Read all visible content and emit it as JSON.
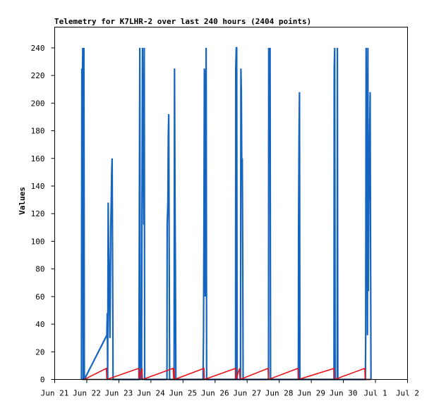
{
  "chart_data": {
    "type": "line",
    "title": "Telemetry for K7LHR-2 over last 240 hours (2404 points)",
    "ylabel": "Values",
    "xlabel": "",
    "ylim": [
      0,
      255
    ],
    "yticks": [
      0,
      20,
      40,
      60,
      80,
      100,
      120,
      140,
      160,
      180,
      200,
      220,
      240
    ],
    "xlim": [
      "2024-06-21",
      "2024-07-02"
    ],
    "xticks": [
      {
        "date": "2024-06-21",
        "label": "Jun 21"
      },
      {
        "date": "2024-06-22",
        "label": "Jun 22"
      },
      {
        "date": "2024-06-23",
        "label": "Jun 23"
      },
      {
        "date": "2024-06-24",
        "label": "Jun 24"
      },
      {
        "date": "2024-06-25",
        "label": "Jun 25"
      },
      {
        "date": "2024-06-26",
        "label": "Jun 26"
      },
      {
        "date": "2024-06-27",
        "label": "Jun 27"
      },
      {
        "date": "2024-06-28",
        "label": "Jun 28"
      },
      {
        "date": "2024-06-29",
        "label": "Jun 29"
      },
      {
        "date": "2024-06-30",
        "label": "Jun 30"
      },
      {
        "date": "2024-07-01",
        "label": "Jul 1"
      },
      {
        "date": "2024-07-02",
        "label": "Jul 2"
      }
    ],
    "grid": false,
    "series": [
      {
        "color": "#1565c0",
        "points": [
          [
            "2024-06-21 20:00",
            0
          ],
          [
            "2024-06-21 20:20",
            225
          ],
          [
            "2024-06-21 20:40",
            208
          ],
          [
            "2024-06-21 21:00",
            240
          ],
          [
            "2024-06-21 21:20",
            0
          ],
          [
            "2024-06-21 21:50",
            240
          ],
          [
            "2024-06-21 22:10",
            0
          ],
          [
            "2024-06-22 15:00",
            32
          ],
          [
            "2024-06-22 15:20",
            48
          ],
          [
            "2024-06-22 15:40",
            0
          ],
          [
            "2024-06-22 16:00",
            128
          ],
          [
            "2024-06-22 16:20",
            96
          ],
          [
            "2024-06-22 16:40",
            80
          ],
          [
            "2024-06-22 17:00",
            48
          ],
          [
            "2024-06-22 17:20",
            30
          ],
          [
            "2024-06-22 17:40",
            70
          ],
          [
            "2024-06-22 18:00",
            112
          ],
          [
            "2024-06-22 18:20",
            130
          ],
          [
            "2024-06-22 18:40",
            150
          ],
          [
            "2024-06-22 19:00",
            160
          ],
          [
            "2024-06-22 19:20",
            80
          ],
          [
            "2024-06-22 19:40",
            0
          ],
          [
            "2024-06-23 15:00",
            0
          ],
          [
            "2024-06-23 15:10",
            48
          ],
          [
            "2024-06-23 15:40",
            240
          ],
          [
            "2024-06-23 16:00",
            0
          ],
          [
            "2024-06-23 16:20",
            48
          ],
          [
            "2024-06-23 16:40",
            40
          ],
          [
            "2024-06-23 17:00",
            0
          ],
          [
            "2024-06-23 17:20",
            128
          ],
          [
            "2024-06-23 17:40",
            240
          ],
          [
            "2024-06-23 18:00",
            177
          ],
          [
            "2024-06-23 18:20",
            160
          ],
          [
            "2024-06-23 18:40",
            112
          ],
          [
            "2024-06-23 19:00",
            240
          ],
          [
            "2024-06-23 19:20",
            0
          ],
          [
            "2024-06-24 12:00",
            0
          ],
          [
            "2024-06-24 12:10",
            112
          ],
          [
            "2024-06-24 12:40",
            128
          ],
          [
            "2024-06-24 13:00",
            177
          ],
          [
            "2024-06-24 13:20",
            192
          ],
          [
            "2024-06-24 13:40",
            96
          ],
          [
            "2024-06-24 14:00",
            0
          ],
          [
            "2024-06-24 17:20",
            0
          ],
          [
            "2024-06-24 17:40",
            225
          ],
          [
            "2024-06-24 18:00",
            128
          ],
          [
            "2024-06-24 18:20",
            80
          ],
          [
            "2024-06-24 18:40",
            0
          ],
          [
            "2024-06-25 15:00",
            0
          ],
          [
            "2024-06-25 15:20",
            32
          ],
          [
            "2024-06-25 15:40",
            112
          ],
          [
            "2024-06-25 16:00",
            225
          ],
          [
            "2024-06-25 16:20",
            208
          ],
          [
            "2024-06-25 16:40",
            60
          ],
          [
            "2024-06-25 17:00",
            128
          ],
          [
            "2024-06-25 17:20",
            240
          ],
          [
            "2024-06-25 17:40",
            0
          ],
          [
            "2024-06-26 15:20",
            0
          ],
          [
            "2024-06-26 15:30",
            225
          ],
          [
            "2024-06-26 15:50",
            240
          ],
          [
            "2024-06-26 16:10",
            240
          ],
          [
            "2024-06-26 16:30",
            0
          ],
          [
            "2024-06-26 19:00",
            0
          ],
          [
            "2024-06-26 19:20",
            225
          ],
          [
            "2024-06-26 19:40",
            208
          ],
          [
            "2024-06-26 20:00",
            145
          ],
          [
            "2024-06-26 20:20",
            160
          ],
          [
            "2024-06-26 20:40",
            97
          ],
          [
            "2024-06-26 21:00",
            0
          ],
          [
            "2024-06-27 16:00",
            0
          ],
          [
            "2024-06-27 16:10",
            240
          ],
          [
            "2024-06-27 16:30",
            208
          ],
          [
            "2024-06-27 16:50",
            225
          ],
          [
            "2024-06-27 17:10",
            240
          ],
          [
            "2024-06-27 17:30",
            0
          ],
          [
            "2024-06-28 14:20",
            0
          ],
          [
            "2024-06-28 14:30",
            112
          ],
          [
            "2024-06-28 14:50",
            177
          ],
          [
            "2024-06-28 15:10",
            208
          ],
          [
            "2024-06-28 15:30",
            0
          ],
          [
            "2024-06-29 17:00",
            0
          ],
          [
            "2024-06-29 17:10",
            225
          ],
          [
            "2024-06-29 17:30",
            240
          ],
          [
            "2024-06-29 17:50",
            0
          ],
          [
            "2024-06-29 19:20",
            0
          ],
          [
            "2024-06-29 19:30",
            240
          ],
          [
            "2024-06-29 19:50",
            0
          ],
          [
            "2024-06-30 16:30",
            0
          ],
          [
            "2024-06-30 16:40",
            32
          ],
          [
            "2024-06-30 17:00",
            240
          ],
          [
            "2024-06-30 17:20",
            192
          ],
          [
            "2024-06-30 17:40",
            145
          ],
          [
            "2024-06-30 18:00",
            32
          ],
          [
            "2024-06-30 18:20",
            240
          ],
          [
            "2024-06-30 18:40",
            64
          ],
          [
            "2024-06-30 19:00",
            128
          ],
          [
            "2024-06-30 19:20",
            145
          ],
          [
            "2024-06-30 19:40",
            177
          ],
          [
            "2024-06-30 20:00",
            208
          ],
          [
            "2024-06-30 20:20",
            97
          ],
          [
            "2024-06-30 20:40",
            0
          ]
        ]
      },
      {
        "color": "#e8131a",
        "points": [
          [
            "2024-06-21 22:00",
            0
          ],
          [
            "2024-06-22 14:40",
            8
          ],
          [
            "2024-06-22 15:00",
            0
          ],
          [
            "2024-06-23 14:50",
            8
          ],
          [
            "2024-06-23 15:20",
            0
          ],
          [
            "2024-06-23 17:20",
            8
          ],
          [
            "2024-06-23 17:40",
            0
          ],
          [
            "2024-06-24 16:40",
            8
          ],
          [
            "2024-06-24 17:00",
            0
          ],
          [
            "2024-06-24 17:20",
            8
          ],
          [
            "2024-06-24 17:40",
            0
          ],
          [
            "2024-06-25 15:40",
            8
          ],
          [
            "2024-06-25 16:00",
            0
          ],
          [
            "2024-06-26 15:20",
            8
          ],
          [
            "2024-06-26 15:40",
            0
          ],
          [
            "2024-06-26 18:20",
            8
          ],
          [
            "2024-06-26 18:40",
            0
          ],
          [
            "2024-06-27 15:40",
            8
          ],
          [
            "2024-06-27 16:00",
            0
          ],
          [
            "2024-06-28 14:00",
            8
          ],
          [
            "2024-06-28 14:20",
            0
          ],
          [
            "2024-06-29 17:00",
            8
          ],
          [
            "2024-06-29 17:20",
            0
          ],
          [
            "2024-06-30 16:00",
            8
          ],
          [
            "2024-06-30 16:20",
            0
          ],
          [
            "2024-06-30 20:40",
            0
          ]
        ]
      },
      {
        "color": "#000000",
        "points": [
          [
            "2024-06-21 20:00",
            0
          ],
          [
            "2024-06-30 20:40",
            0
          ]
        ]
      }
    ]
  }
}
